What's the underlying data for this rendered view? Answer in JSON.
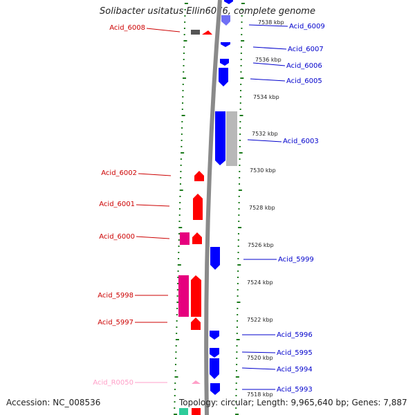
{
  "title": "Solibacter usitatus Ellin6076, complete genome",
  "footer": {
    "accession": "Accession: NC_008536",
    "summary": "Topology: circular; Length: 9,965,640 bp; Genes: 7,887"
  },
  "colors": {
    "forward_cds": "#ff0000",
    "reverse_cds": "#0000ff",
    "forward_other": "#e6007e",
    "reverse_other": "#b8b8b8",
    "rna": "#ff9fc8",
    "backbone": "#8a8a8a",
    "ticks": "#1a7a1a"
  },
  "ruler_labels": [
    "7538 kbp",
    "7536 kbp",
    "7534 kbp",
    "7532 kbp",
    "7530 kbp",
    "7528 kbp",
    "7526 kbp",
    "7524 kbp",
    "7522 kbp",
    "7520 kbp",
    "7518 kbp"
  ],
  "left_genes": [
    "Acid_6008",
    "Acid_6002",
    "Acid_6001",
    "Acid_6000",
    "Acid_5998",
    "Acid_5997",
    "Acid_R0050"
  ],
  "right_genes": [
    "Acid_6009",
    "Acid_6007",
    "Acid_6006",
    "Acid_6005",
    "Acid_6003",
    "Acid_5999",
    "Acid_5996",
    "Acid_5995",
    "Acid_5994",
    "Acid_5993"
  ]
}
